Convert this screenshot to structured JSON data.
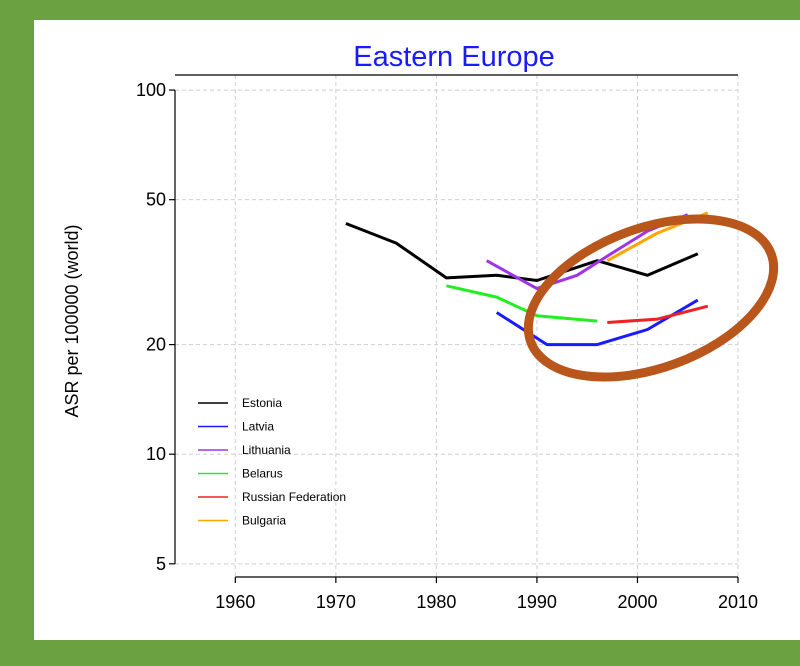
{
  "chart_data": {
    "type": "line",
    "title": "Eastern Europe",
    "xlabel": "",
    "ylabel": "ASR per 100000 (world)",
    "y_scale": "log",
    "xlim": [
      1954,
      2010
    ],
    "ylim": [
      4.6,
      110
    ],
    "x_ticks": [
      1960,
      1970,
      1980,
      1990,
      2000,
      2010
    ],
    "x_tick_labels": [
      "1960",
      "1970",
      "1980",
      "1990",
      "2000",
      "2010"
    ],
    "y_ticks": [
      5,
      10,
      20,
      50,
      100
    ],
    "y_tick_labels": [
      "5",
      "10",
      "20",
      "50",
      "100"
    ],
    "grid": true,
    "legend_position": "bottom-left",
    "series": [
      {
        "name": "Estonia",
        "color": "#000000",
        "x": [
          1971,
          1976,
          1981,
          1986,
          1990,
          1996,
          2001,
          2006
        ],
        "y": [
          43,
          38,
          30.5,
          31,
          30,
          34,
          31,
          35.5
        ]
      },
      {
        "name": "Latvia",
        "color": "#1a1aff",
        "x": [
          1986,
          1991,
          1996,
          2001,
          2006
        ],
        "y": [
          24.5,
          20,
          20,
          22,
          26.5
        ]
      },
      {
        "name": "Lithuania",
        "color": "#a033e6",
        "x": [
          1985,
          1990,
          1994,
          1997,
          2001,
          2005
        ],
        "y": [
          34,
          28.5,
          31,
          35,
          41,
          45.5
        ]
      },
      {
        "name": "Belarus",
        "color": "#22ee22",
        "x": [
          1981,
          1986,
          1990,
          1996
        ],
        "y": [
          29,
          27,
          24,
          23.2
        ]
      },
      {
        "name": "Russian Federation",
        "color": "#ee2222",
        "x": [
          1997,
          2002,
          2007
        ],
        "y": [
          23,
          23.5,
          25.5
        ]
      },
      {
        "name": "Bulgaria",
        "color": "#ffa500",
        "x": [
          1997,
          2002,
          2007
        ],
        "y": [
          34,
          40.5,
          46
        ]
      }
    ],
    "annotations": [
      {
        "type": "ellipse",
        "color": "#b8561b",
        "description": "hand-drawn highlight"
      }
    ]
  }
}
